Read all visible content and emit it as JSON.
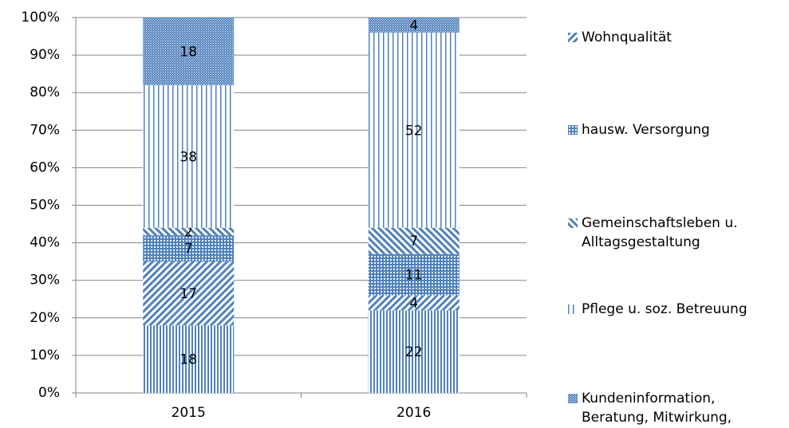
{
  "chart_data": {
    "type": "stacked_bar",
    "categories": [
      "2015",
      "2016"
    ],
    "series": [
      {
        "color": "#4f81bd",
        "pattern": "vfine",
        "values": [
          18,
          22
        ]
      },
      {
        "name": "Wohnqualität",
        "color": "#4f81bd",
        "pattern": "diag",
        "values": [
          17,
          4
        ]
      },
      {
        "name": "hausw. Versorgung",
        "color": "#4f81bd",
        "pattern": "cross",
        "values": [
          7,
          11
        ]
      },
      {
        "name": "Gemeinschaftsleben u. Alltagsgestaltung",
        "color": "#4f81bd",
        "pattern": "rdiag",
        "values": [
          2,
          7
        ]
      },
      {
        "name": "Pflege u. soz. Betreuung",
        "color": "#4f81bd",
        "pattern": "vwide",
        "values": [
          38,
          52
        ]
      },
      {
        "name": "Kundeninformation, Beratung, Mitwirkung, Mitbestimmung",
        "color": "#4f81bd",
        "pattern": "dots",
        "values": [
          18,
          4
        ]
      }
    ],
    "ylim": [
      0,
      100
    ],
    "yticks": [
      {
        "value": 0,
        "label": "0%"
      },
      {
        "value": 10,
        "label": "10%"
      },
      {
        "value": 20,
        "label": "20%"
      },
      {
        "value": 30,
        "label": "30%"
      },
      {
        "value": 40,
        "label": "40%"
      },
      {
        "value": 50,
        "label": "50%"
      },
      {
        "value": 60,
        "label": "60%"
      },
      {
        "value": 70,
        "label": "70%"
      },
      {
        "value": 80,
        "label": "80%"
      },
      {
        "value": 90,
        "label": "90%"
      },
      {
        "value": 100,
        "label": "100%"
      }
    ],
    "grid": true,
    "legend": "right"
  }
}
